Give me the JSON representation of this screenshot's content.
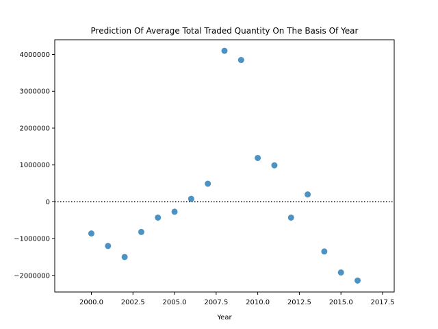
{
  "chart_data": {
    "type": "scatter",
    "title": "Prediction Of Average Total Traded Quantity On The Basis Of Year",
    "xlabel": "Year",
    "ylabel": "",
    "xlim": [
      1997.8,
      2018.2
    ],
    "ylim": [
      -2450000,
      4400000
    ],
    "x_ticks": [
      2000.0,
      2002.5,
      2005.0,
      2007.5,
      2010.0,
      2012.5,
      2015.0,
      2017.5
    ],
    "x_tick_labels": [
      "2000.0",
      "2002.5",
      "2005.0",
      "2007.5",
      "2010.0",
      "2012.5",
      "2015.0",
      "2017.5"
    ],
    "y_ticks": [
      -2000000,
      -1000000,
      0,
      1000000,
      2000000,
      3000000,
      4000000
    ],
    "y_tick_labels": [
      "−2000000",
      "−1000000",
      "0",
      "1000000",
      "2000000",
      "3000000",
      "4000000"
    ],
    "reference_line_y": 0,
    "point_color": "#1f77b4",
    "grid": false,
    "points": [
      {
        "x": 2000,
        "y": -860000
      },
      {
        "x": 2001,
        "y": -1200000
      },
      {
        "x": 2002,
        "y": -1500000
      },
      {
        "x": 2003,
        "y": -820000
      },
      {
        "x": 2004,
        "y": -430000
      },
      {
        "x": 2005,
        "y": -270000
      },
      {
        "x": 2006,
        "y": 80000
      },
      {
        "x": 2007,
        "y": 490000
      },
      {
        "x": 2008,
        "y": 4100000
      },
      {
        "x": 2009,
        "y": 3850000
      },
      {
        "x": 2010,
        "y": 1190000
      },
      {
        "x": 2011,
        "y": 990000
      },
      {
        "x": 2012,
        "y": -430000
      },
      {
        "x": 2013,
        "y": 200000
      },
      {
        "x": 2014,
        "y": -1350000
      },
      {
        "x": 2015,
        "y": -1920000
      },
      {
        "x": 2016,
        "y": -2140000
      }
    ]
  }
}
